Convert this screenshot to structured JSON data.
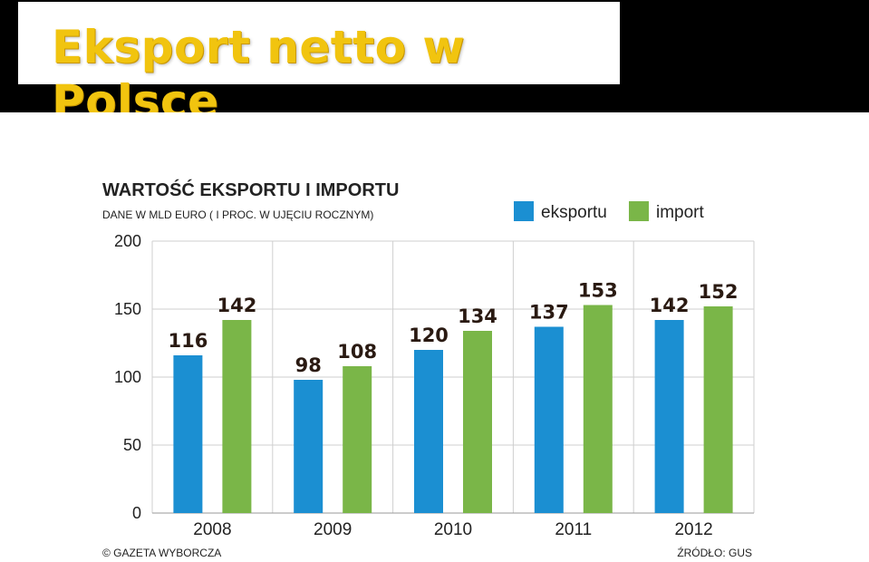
{
  "slide": {
    "title": "Eksport netto w Polsce"
  },
  "chart_data": {
    "type": "bar",
    "title": "WARTOŚĆ EKSPORTU I IMPORTU",
    "subtitle": "DANE W MLD EURO ( I PROC. W UJĘCIU ROCZNYM)",
    "categories": [
      "2008",
      "2009",
      "2010",
      "2011",
      "2012"
    ],
    "series": [
      {
        "name": "eksportu",
        "color": "#1b8fd2",
        "values": [
          116,
          98,
          120,
          137,
          142
        ]
      },
      {
        "name": "import",
        "color": "#7ab648",
        "values": [
          142,
          108,
          134,
          153,
          152
        ]
      }
    ],
    "ylim": [
      0,
      200
    ],
    "yticks": [
      "0",
      "50",
      "100",
      "150",
      "200"
    ],
    "xlabel": "",
    "ylabel": "",
    "grid": true,
    "legend_position": "top-right",
    "footer_left": "© GAZETA WYBORCZA",
    "footer_right": "ŹRÓDŁO: GUS",
    "colors": {
      "grid": "#cfcfcf",
      "text": "#222222",
      "value_label": "#2a1a12"
    }
  }
}
